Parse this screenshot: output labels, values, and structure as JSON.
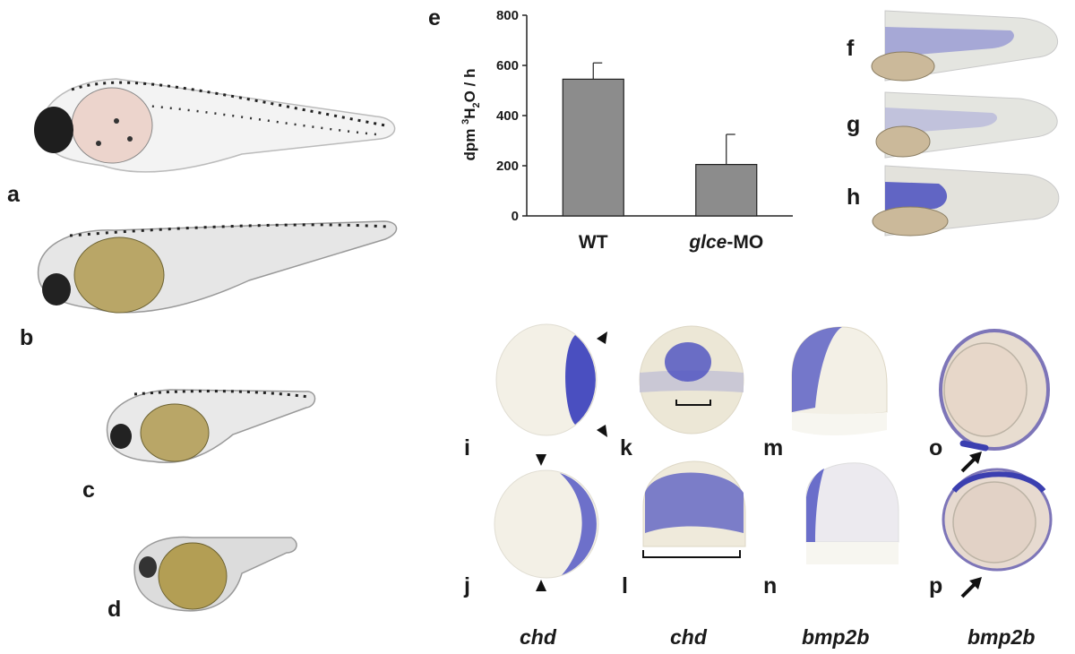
{
  "panels": {
    "a": "a",
    "b": "b",
    "c": "c",
    "d": "d",
    "e": "e",
    "f": "f",
    "g": "g",
    "h": "h",
    "i": "i",
    "j": "j",
    "k": "k",
    "l": "l",
    "m": "m",
    "n": "n",
    "o": "o",
    "p": "p"
  },
  "genes": [
    "chd",
    "chd",
    "bmp2b",
    "bmp2b"
  ],
  "colors": {
    "stain": "#4a4fc0",
    "bar_fill": "#8c8c8c",
    "yolk_wt": "#e8d4cc",
    "yolk_mo": "#b9a667"
  },
  "chart_data": {
    "type": "bar",
    "categories": [
      "WT",
      "glce-MO"
    ],
    "category_parts": [
      {
        "italic": "",
        "plain": "WT"
      },
      {
        "italic": "glce",
        "plain": "-MO"
      }
    ],
    "values": [
      545,
      205
    ],
    "errors": [
      65,
      120
    ],
    "ylabel": "dpm ³H₂O / h",
    "ylim": [
      0,
      800
    ],
    "yticks": [
      0,
      200,
      400,
      600,
      800
    ],
    "grid": false
  }
}
